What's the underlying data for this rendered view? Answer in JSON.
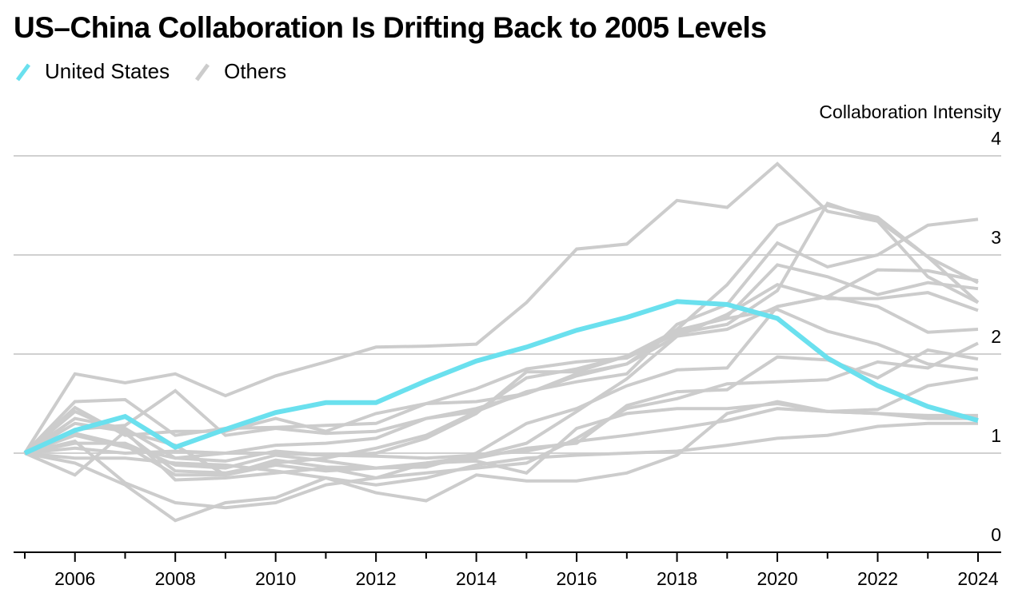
{
  "title": "US–China Collaboration Is Drifting Back to 2005 Levels",
  "legend": [
    {
      "label": "United States",
      "color": "#6ae0ee"
    },
    {
      "label": "Others",
      "color": "#cccccc"
    }
  ],
  "chart_data": {
    "type": "line",
    "title": "US–China Collaboration Is Drifting Back to 2005 Levels",
    "xlabel": "",
    "ylabel": "Collaboration Intensity",
    "ylim": [
      0,
      4
    ],
    "xlim": [
      2005,
      2024
    ],
    "grid": true,
    "legend_position": "top-left",
    "yticks": [
      "0",
      "1",
      "2",
      "3",
      "4"
    ],
    "xticks": [
      "2006",
      "2008",
      "2010",
      "2012",
      "2014",
      "2016",
      "2018",
      "2020",
      "2022",
      "2024"
    ],
    "x": [
      2005,
      2006,
      2007,
      2008,
      2009,
      2010,
      2011,
      2012,
      2013,
      2014,
      2015,
      2016,
      2017,
      2018,
      2019,
      2020,
      2021,
      2022,
      2023,
      2024
    ],
    "series": [
      {
        "name": "Others 1",
        "group": "Others",
        "values": [
          1.0,
          1.8,
          1.71,
          1.8,
          1.58,
          1.78,
          1.92,
          2.07,
          2.08,
          2.1,
          2.52,
          3.06,
          3.11,
          3.55,
          3.48,
          3.92,
          3.44,
          3.34,
          2.78,
          2.52
        ]
      },
      {
        "name": "Others 2",
        "group": "Others",
        "values": [
          1.0,
          1.52,
          1.54,
          1.18,
          1.25,
          1.26,
          1.28,
          1.3,
          1.5,
          1.65,
          1.85,
          1.92,
          1.96,
          2.21,
          2.3,
          2.64,
          3.52,
          3.35,
          2.98,
          2.72
        ]
      },
      {
        "name": "Others 3",
        "group": "Others",
        "values": [
          1.0,
          1.46,
          1.18,
          1.22,
          1.22,
          1.35,
          1.22,
          1.4,
          1.5,
          1.52,
          1.6,
          1.8,
          1.9,
          2.25,
          2.7,
          3.3,
          3.5,
          3.38,
          2.98,
          2.52
        ]
      },
      {
        "name": "Others 4",
        "group": "Others",
        "values": [
          1.0,
          1.24,
          1.28,
          1.63,
          1.18,
          1.25,
          1.2,
          1.22,
          1.35,
          1.42,
          1.62,
          1.72,
          1.8,
          2.3,
          2.5,
          3.12,
          2.88,
          3.0,
          3.3,
          3.36
        ]
      },
      {
        "name": "Others 5",
        "group": "Others",
        "values": [
          1.0,
          1.42,
          1.2,
          0.82,
          0.8,
          0.9,
          0.95,
          1.05,
          1.18,
          1.42,
          1.76,
          1.85,
          1.98,
          2.22,
          2.38,
          2.9,
          2.78,
          2.6,
          2.72,
          2.66
        ]
      },
      {
        "name": "Others 6",
        "group": "Others",
        "values": [
          1.0,
          1.35,
          1.25,
          0.95,
          1.0,
          1.08,
          1.1,
          1.15,
          1.35,
          1.45,
          1.6,
          1.78,
          1.9,
          2.18,
          2.4,
          2.7,
          2.56,
          2.56,
          2.62,
          2.44
        ]
      },
      {
        "name": "Others 7",
        "group": "Others",
        "values": [
          1.0,
          1.3,
          1.22,
          1.08,
          0.78,
          0.93,
          0.86,
          0.85,
          0.9,
          0.97,
          1.1,
          1.42,
          1.75,
          2.18,
          2.25,
          2.48,
          2.58,
          2.85,
          2.84,
          2.74
        ]
      },
      {
        "name": "Others 8",
        "group": "Others",
        "values": [
          1.0,
          1.18,
          1.06,
          0.95,
          0.92,
          1.02,
          0.98,
          1.0,
          1.15,
          1.4,
          1.82,
          1.82,
          1.98,
          2.24,
          2.36,
          2.45,
          2.23,
          2.1,
          1.9,
          1.84
        ]
      },
      {
        "name": "Others 9",
        "group": "Others",
        "values": [
          1.0,
          1.1,
          1.1,
          0.88,
          0.85,
          0.98,
          0.92,
          0.85,
          0.86,
          1.0,
          1.3,
          1.45,
          1.68,
          1.84,
          1.86,
          2.48,
          2.58,
          2.48,
          2.22,
          2.25
        ]
      },
      {
        "name": "Others 10",
        "group": "Others",
        "values": [
          1.0,
          1.2,
          1.08,
          0.78,
          0.78,
          0.88,
          0.82,
          0.85,
          0.88,
          0.95,
          1.05,
          1.1,
          1.48,
          1.62,
          1.64,
          1.97,
          1.94,
          1.76,
          2.04,
          1.95
        ]
      },
      {
        "name": "Others 11",
        "group": "Others",
        "values": [
          1.0,
          1.12,
          0.7,
          0.5,
          0.45,
          0.5,
          0.68,
          0.75,
          0.8,
          0.85,
          0.9,
          1.15,
          1.45,
          1.55,
          1.7,
          1.72,
          1.74,
          1.92,
          1.86,
          2.11
        ]
      },
      {
        "name": "Others 12",
        "group": "Others",
        "values": [
          1.0,
          0.78,
          1.22,
          0.73,
          0.75,
          0.8,
          0.85,
          0.75,
          0.9,
          0.92,
          0.8,
          1.25,
          1.4,
          1.45,
          1.45,
          1.5,
          1.42,
          1.44,
          1.68,
          1.76
        ]
      },
      {
        "name": "Others 13",
        "group": "Others",
        "values": [
          1.0,
          1.05,
          1.0,
          1.02,
          1.0,
          1.0,
          0.98,
          0.97,
          0.95,
          0.98,
          1.02,
          1.12,
          1.18,
          1.25,
          1.33,
          1.45,
          1.42,
          1.4,
          1.38,
          1.38
        ]
      },
      {
        "name": "Others 14",
        "group": "Others",
        "values": [
          1.0,
          0.95,
          0.95,
          0.9,
          0.88,
          0.82,
          0.75,
          0.68,
          0.75,
          0.88,
          0.95,
          0.98,
          1.0,
          1.02,
          1.08,
          1.15,
          1.18,
          1.27,
          1.3,
          1.3
        ]
      },
      {
        "name": "Others 15",
        "group": "Others",
        "values": [
          1.0,
          0.9,
          0.68,
          0.32,
          0.5,
          0.55,
          0.75,
          0.6,
          0.52,
          0.78,
          0.72,
          0.72,
          0.8,
          0.98,
          1.4,
          1.52,
          1.42,
          1.4,
          1.35,
          1.35
        ]
      },
      {
        "name": "United States",
        "group": "United States",
        "values": [
          1.0,
          1.23,
          1.37,
          1.06,
          1.24,
          1.41,
          1.51,
          1.51,
          1.73,
          1.93,
          2.07,
          2.24,
          2.37,
          2.53,
          2.5,
          2.36,
          1.96,
          1.68,
          1.47,
          1.33
        ]
      }
    ]
  }
}
